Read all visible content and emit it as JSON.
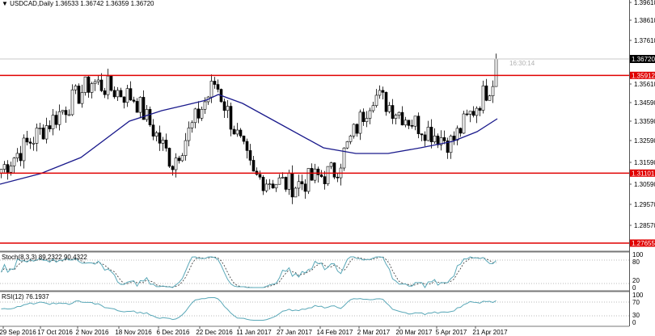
{
  "header": {
    "symbol_line": "USDCAD,Daily  1.36533 1.36742 1.36359 1.36720"
  },
  "price_axis": {
    "labels": [
      "1.39610",
      "1.38610",
      "1.37610",
      "1.35610",
      "1.34590",
      "1.33590",
      "1.32590",
      "1.31590",
      "1.30590",
      "1.29570",
      "1.28570"
    ],
    "current_price": "1.36720",
    "countdown": "16:30:14"
  },
  "levels": [
    {
      "label": "1.35912",
      "color": "#e00000"
    },
    {
      "label": "1.31101",
      "color": "#e00000"
    },
    {
      "label": "1.27655",
      "color": "#e00000"
    }
  ],
  "colors": {
    "ma": "#1a1a8c",
    "oscillator": "#5aa8b8",
    "level": "#e00000",
    "axis": "#555555"
  },
  "price_path": [
    [
      "29 Sep 2016",
      1.313
    ],
    [
      "17 Oct 2016",
      1.339
    ],
    [
      "2 Nov 2016",
      1.356
    ],
    [
      "18 Nov 2016",
      1.348
    ],
    [
      "6 Dec 2016",
      1.316
    ],
    [
      "22 Dec 2016",
      1.356
    ],
    [
      "11 Jan 2017",
      1.309
    ],
    [
      "27 Jan 2017",
      1.305
    ],
    [
      "14 Feb 2017",
      1.312
    ],
    [
      "2 Mar 2017",
      1.35
    ],
    [
      "20 Mar 2017",
      1.336
    ],
    [
      "5 Apr 2017",
      1.326
    ],
    [
      "21 Apr 2017",
      1.356
    ],
    [
      "28 Apr 2017",
      1.3672
    ]
  ],
  "stochastic": {
    "label": "Stoch(8,3,3) 89.2322 90.4322",
    "levels": [
      "100",
      "80",
      "20",
      "0"
    ]
  },
  "rsi": {
    "label": "RSI(12) 76.1937",
    "levels": [
      "100",
      "70",
      "30",
      "0"
    ]
  },
  "date_axis": [
    "29 Sep 2016",
    "17 Oct 2016",
    "2 Nov 2016",
    "18 Nov 2016",
    "6 Dec 2016",
    "22 Dec 2016",
    "11 Jan 2017",
    "27 Jan 2017",
    "14 Feb 2017",
    "2 Mar 2017",
    "20 Mar 2017",
    "5 Apr 2017",
    "21 Apr 2017"
  ]
}
